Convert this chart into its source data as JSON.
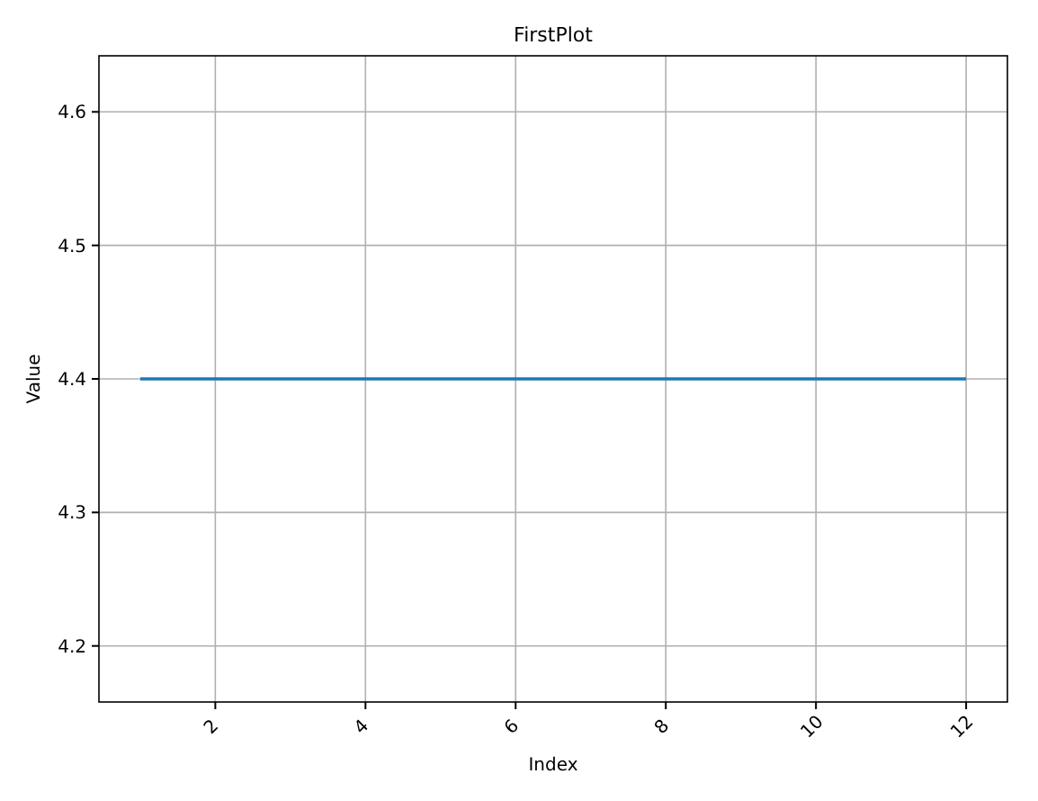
{
  "chart_data": {
    "type": "line",
    "title": "FirstPlot",
    "xlabel": "Index",
    "ylabel": "Value",
    "x": [
      1,
      12
    ],
    "series": [
      {
        "color": "#1f77b4",
        "values": [
          4.4,
          4.4
        ]
      }
    ],
    "xlim": [
      0.45,
      12.55
    ],
    "xticks": [
      2,
      4,
      6,
      8,
      10,
      12
    ],
    "ylim": [
      4.158,
      4.642
    ],
    "yticks": [
      4.2,
      4.3,
      4.4,
      4.5,
      4.6
    ],
    "grid": true,
    "marker": "none",
    "line_style": "solid"
  }
}
